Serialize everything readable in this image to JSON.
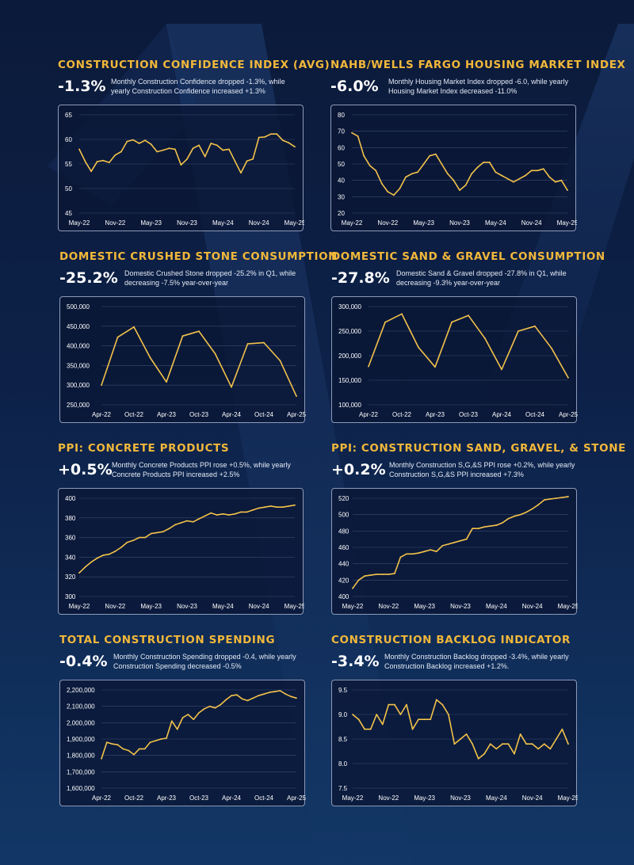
{
  "colors": {
    "accent": "#f2b83a",
    "line": "#f2c24a",
    "panel_border": "#8d9ab8"
  },
  "cards": [
    {
      "title": "CONSTRUCTION CONFIDENCE INDEX (AVG)",
      "pct": "-1.3%",
      "desc": "Monthly Construction Confidence dropped -1.3%, while yearly Construction Confidence increased +1.3%"
    },
    {
      "title": "NAHB/WELLS FARGO HOUSING MARKET INDEX",
      "pct": "-6.0%",
      "desc": "Monthly Housing Market Index dropped -6.0, while yearly Housing Market Index decreased -11.0%"
    },
    {
      "title": "DOMESTIC CRUSHED STONE CONSUMPTION",
      "pct": "-25.2%",
      "desc": "Domestic Crushed Stone dropped -25.2% in Q1, while decreasing -7.5% year-over-year"
    },
    {
      "title": "DOMESTIC SAND & GRAVEL CONSUMPTION",
      "pct": "-27.8%",
      "desc": "Domestic Sand & Gravel dropped -27.8% in Q1, while decreasing -9.3% year-over-year"
    },
    {
      "title": "PPI: CONCRETE PRODUCTS",
      "pct": "+0.5%",
      "desc": "Monthly Concrete Products PPI rose +0.5%, while yearly Concrete Products PPI increased +2.5%"
    },
    {
      "title": "PPI: CONSTRUCTION SAND, GRAVEL, & STONE",
      "pct": "+0.2%",
      "desc": "Monthly Construction S,G,&S PPI rose +0.2%, while yearly Construction S,G,&S PPI increased +7.3%"
    },
    {
      "title": "TOTAL CONSTRUCTION SPENDING",
      "pct": "-0.4%",
      "desc": "Monthly Construction Spending dropped -0.4, while yearly Construction Spending decreased -0.5%"
    },
    {
      "title": "CONSTRUCTION BACKLOG INDICATOR",
      "pct": "-3.4%",
      "desc": "Monthly Construction Backlog dropped -3.4%, while yearly Construction Backlog increased +1.2%."
    }
  ],
  "chart_data": [
    {
      "type": "line",
      "title": "CONSTRUCTION CONFIDENCE INDEX (AVG)",
      "x_ticks": [
        "May-22",
        "Nov-22",
        "May-23",
        "Nov-23",
        "May-24",
        "Nov-24",
        "May-25"
      ],
      "y_ticks": [
        "45",
        "50",
        "55",
        "60",
        "65"
      ],
      "ylim": [
        45,
        65
      ],
      "grid": true,
      "values": [
        58,
        55.5,
        53.5,
        55.5,
        55.7,
        55.3,
        56.8,
        57.5,
        59.6,
        59.9,
        59.2,
        59.8,
        59,
        57.5,
        57.8,
        58.2,
        58,
        54.8,
        56,
        58.2,
        58.8,
        56.5,
        59.2,
        58.8,
        57.8,
        58,
        55.6,
        53.2,
        55.6,
        56,
        60.4,
        60.5,
        61.1,
        61.1,
        59.8,
        59.3,
        58.5
      ]
    },
    {
      "type": "line",
      "title": "NAHB/WELLS FARGO HOUSING MARKET INDEX",
      "x_ticks": [
        "May-22",
        "Nov-22",
        "May-23",
        "Nov-23",
        "May-24",
        "Nov-24",
        "May-25"
      ],
      "y_ticks": [
        "20",
        "30",
        "40",
        "50",
        "60",
        "70",
        "80"
      ],
      "ylim": [
        20,
        80
      ],
      "grid": true,
      "values": [
        69,
        67,
        55,
        49,
        46,
        38,
        33,
        31,
        35,
        42,
        44,
        45,
        50,
        55,
        56,
        50,
        44,
        40,
        34,
        37,
        44,
        48,
        51,
        51,
        45,
        43,
        41,
        39,
        41,
        43,
        46,
        46,
        47,
        42,
        39,
        40,
        34
      ]
    },
    {
      "type": "line",
      "title": "DOMESTIC CRUSHED STONE CONSUMPTION",
      "x_ticks": [
        "Apr-22",
        "Oct-22",
        "Apr-23",
        "Oct-23",
        "Apr-24",
        "Oct-24",
        "Apr-25"
      ],
      "y_ticks": [
        "250,000",
        "300,000",
        "350,000",
        "400,000",
        "450,000",
        "500,000"
      ],
      "ylim": [
        250000,
        500000
      ],
      "grid": true,
      "values": [
        300000,
        422000,
        448000,
        370000,
        308000,
        425000,
        437000,
        380000,
        295000,
        405000,
        408000,
        362000,
        272000
      ]
    },
    {
      "type": "line",
      "title": "DOMESTIC SAND & GRAVEL CONSUMPTION",
      "x_ticks": [
        "Apr-22",
        "Oct-22",
        "Apr-23",
        "Oct-23",
        "Apr-24",
        "Oct-24",
        "Apr-25"
      ],
      "y_ticks": [
        "100,000",
        "150,000",
        "200,000",
        "250,000",
        "300,000"
      ],
      "ylim": [
        100000,
        300000
      ],
      "grid": true,
      "values": [
        178000,
        268000,
        285000,
        217000,
        177000,
        268000,
        282000,
        235000,
        172000,
        250000,
        260000,
        215000,
        155000
      ]
    },
    {
      "type": "line",
      "title": "PPI: CONCRETE PRODUCTS",
      "x_ticks": [
        "May-22",
        "Nov-22",
        "May-23",
        "Nov-23",
        "May-24",
        "Nov-24",
        "May-25"
      ],
      "y_ticks": [
        "300",
        "320",
        "340",
        "360",
        "380",
        "400"
      ],
      "ylim": [
        300,
        400
      ],
      "grid": true,
      "values": [
        324,
        330,
        335,
        339,
        342,
        343,
        346,
        350,
        355,
        357,
        360,
        360,
        364,
        365,
        366,
        369,
        373,
        375,
        377,
        376,
        379,
        382,
        385,
        383,
        384,
        383,
        384,
        386,
        386,
        388,
        390,
        391,
        392,
        391,
        391,
        392,
        393
      ]
    },
    {
      "type": "line",
      "title": "PPI: CONSTRUCTION SAND, GRAVEL, & STONE",
      "x_ticks": [
        "May-22",
        "Nov-22",
        "May-23",
        "Nov-23",
        "May-24",
        "Nov-24",
        "May-25"
      ],
      "y_ticks": [
        "400",
        "420",
        "440",
        "460",
        "480",
        "500",
        "520"
      ],
      "ylim": [
        400,
        520
      ],
      "grid": true,
      "values": [
        410,
        420,
        425,
        426,
        427,
        427,
        427,
        428,
        448,
        452,
        452,
        453,
        455,
        457,
        455,
        462,
        464,
        466,
        468,
        470,
        483,
        483,
        485,
        486,
        487,
        490,
        495,
        498,
        500,
        503,
        507,
        512,
        518,
        519,
        520,
        521,
        522
      ]
    },
    {
      "type": "line",
      "title": "TOTAL CONSTRUCTION SPENDING",
      "x_ticks": [
        "Apr-22",
        "Oct-22",
        "Apr-23",
        "Oct-23",
        "Apr-24",
        "Oct-24",
        "Apr-25"
      ],
      "y_ticks": [
        "1,600,000",
        "1,700,000",
        "1,800,000",
        "1,900,000",
        "2,000,000",
        "2,100,000",
        "2,200,000"
      ],
      "ylim": [
        1600000,
        2200000
      ],
      "grid": true,
      "values": [
        1780000,
        1880000,
        1870000,
        1865000,
        1840000,
        1830000,
        1805000,
        1840000,
        1840000,
        1880000,
        1890000,
        1900000,
        1905000,
        2010000,
        1960000,
        2030000,
        2050000,
        2020000,
        2060000,
        2085000,
        2100000,
        2090000,
        2110000,
        2140000,
        2165000,
        2170000,
        2145000,
        2135000,
        2150000,
        2165000,
        2175000,
        2185000,
        2190000,
        2195000,
        2175000,
        2160000,
        2150000
      ]
    },
    {
      "type": "line",
      "title": "CONSTRUCTION BACKLOG INDICATOR",
      "x_ticks": [
        "May-22",
        "Nov-22",
        "May-23",
        "Nov-23",
        "May-24",
        "Nov-24",
        "May-25"
      ],
      "y_ticks": [
        "7.5",
        "8.0",
        "8.5",
        "9.0",
        "9.5"
      ],
      "ylim": [
        7.5,
        9.5
      ],
      "grid": true,
      "values": [
        9.0,
        8.9,
        8.7,
        8.7,
        9.0,
        8.8,
        9.2,
        9.2,
        9.0,
        9.2,
        8.7,
        8.9,
        8.9,
        8.9,
        9.3,
        9.2,
        9.0,
        8.4,
        8.5,
        8.6,
        8.4,
        8.1,
        8.2,
        8.4,
        8.3,
        8.4,
        8.4,
        8.2,
        8.6,
        8.4,
        8.4,
        8.3,
        8.4,
        8.3,
        8.5,
        8.7,
        8.4
      ]
    }
  ]
}
